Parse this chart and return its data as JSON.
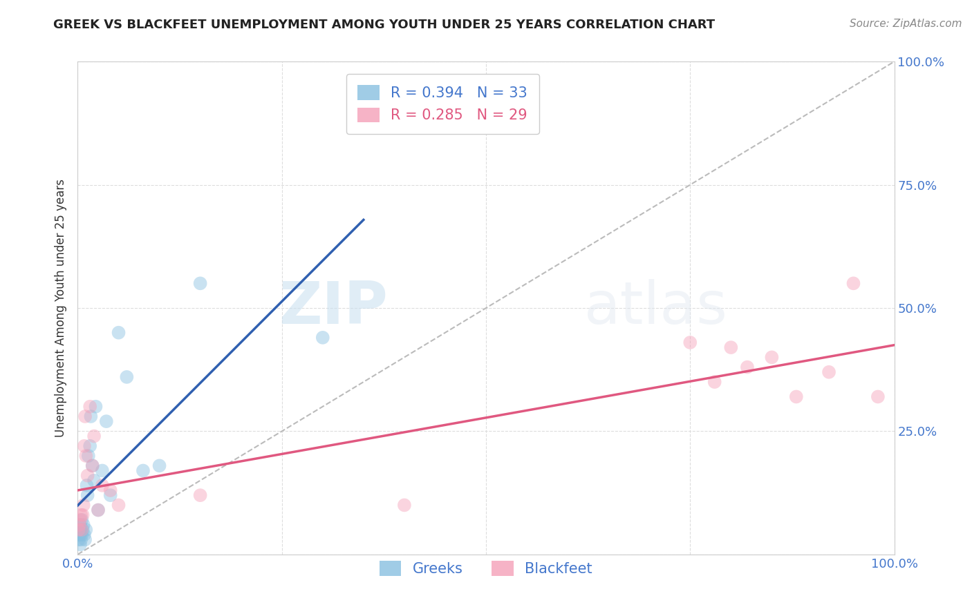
{
  "title": "GREEK VS BLACKFEET UNEMPLOYMENT AMONG YOUTH UNDER 25 YEARS CORRELATION CHART",
  "source": "Source: ZipAtlas.com",
  "ylabel": "Unemployment Among Youth under 25 years",
  "watermark": "ZIPatlas",
  "background_color": "#ffffff",
  "greeks_x": [
    0.001,
    0.002,
    0.002,
    0.003,
    0.003,
    0.003,
    0.004,
    0.004,
    0.005,
    0.005,
    0.006,
    0.007,
    0.008,
    0.009,
    0.01,
    0.011,
    0.012,
    0.013,
    0.015,
    0.016,
    0.018,
    0.02,
    0.022,
    0.025,
    0.03,
    0.035,
    0.04,
    0.05,
    0.06,
    0.08,
    0.1,
    0.15,
    0.3
  ],
  "greeks_y": [
    0.03,
    0.04,
    0.05,
    0.02,
    0.04,
    0.06,
    0.03,
    0.05,
    0.04,
    0.07,
    0.05,
    0.06,
    0.04,
    0.03,
    0.05,
    0.14,
    0.12,
    0.2,
    0.22,
    0.28,
    0.18,
    0.15,
    0.3,
    0.09,
    0.17,
    0.27,
    0.12,
    0.45,
    0.36,
    0.17,
    0.18,
    0.55,
    0.44
  ],
  "blackfeet_x": [
    0.001,
    0.002,
    0.003,
    0.004,
    0.005,
    0.006,
    0.007,
    0.008,
    0.009,
    0.01,
    0.012,
    0.015,
    0.018,
    0.02,
    0.025,
    0.03,
    0.04,
    0.05,
    0.15,
    0.4,
    0.75,
    0.78,
    0.8,
    0.82,
    0.85,
    0.88,
    0.92,
    0.95,
    0.98
  ],
  "blackfeet_y": [
    0.05,
    0.06,
    0.07,
    0.08,
    0.05,
    0.08,
    0.1,
    0.22,
    0.28,
    0.2,
    0.16,
    0.3,
    0.18,
    0.24,
    0.09,
    0.14,
    0.13,
    0.1,
    0.12,
    0.1,
    0.43,
    0.35,
    0.42,
    0.38,
    0.4,
    0.32,
    0.37,
    0.55,
    0.32
  ],
  "greek_R": 0.394,
  "greek_N": 33,
  "blackfeet_R": 0.285,
  "blackfeet_N": 29,
  "greek_color": "#88c0e0",
  "blackfeet_color": "#f4a0b8",
  "greek_line_color": "#3060b0",
  "blackfeet_line_color": "#e05880",
  "diagonal_color": "#bbbbbb",
  "tick_label_color": "#4477cc",
  "grid_color": "#dddddd",
  "xlim": [
    0,
    1
  ],
  "ylim": [
    0,
    1
  ],
  "marker_size": 200,
  "marker_alpha": 0.45,
  "legend_fontsize": 15,
  "title_fontsize": 13,
  "source_fontsize": 11,
  "axis_label_fontsize": 12,
  "tick_fontsize": 13
}
